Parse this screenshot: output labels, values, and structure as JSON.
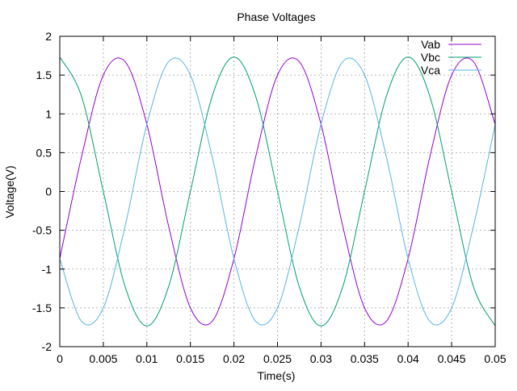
{
  "chart_data": {
    "type": "line",
    "title": "Phase Voltages",
    "xlabel": "Time(s)",
    "ylabel": "Voltage(V)",
    "xlim": [
      0,
      0.05
    ],
    "ylim": [
      -2,
      2
    ],
    "x_ticks": [
      "0",
      "0.005",
      "0.01",
      "0.015",
      "0.02",
      "0.025",
      "0.03",
      "0.035",
      "0.04",
      "0.045",
      "0.05"
    ],
    "y_ticks": [
      "2",
      "1.5",
      "1",
      "0.5",
      "0",
      "-0.5",
      "-1",
      "-1.5",
      "-2"
    ],
    "grid": true,
    "legend_position": "top-right",
    "series": [
      {
        "name": "Vab",
        "color": "#9400d3",
        "x": [
          0,
          0.0025,
          0.005,
          0.0075,
          0.01,
          0.0125,
          0.015,
          0.0175,
          0.02,
          0.0225,
          0.025,
          0.0275,
          0.03,
          0.0325,
          0.035,
          0.0375,
          0.04,
          0.0425,
          0.045,
          0.0475,
          0.05
        ],
        "values": [
          -0.866,
          0.448,
          1.5,
          1.673,
          0.866,
          -0.448,
          -1.5,
          -1.673,
          -0.866,
          0.448,
          1.5,
          1.673,
          0.866,
          -0.448,
          -1.5,
          -1.673,
          -0.866,
          0.448,
          1.5,
          1.673,
          0.866
        ]
      },
      {
        "name": "Vbc",
        "color": "#009e73",
        "x": [
          0,
          0.0025,
          0.005,
          0.0075,
          0.01,
          0.0125,
          0.015,
          0.0175,
          0.02,
          0.0225,
          0.025,
          0.0275,
          0.03,
          0.0325,
          0.035,
          0.0375,
          0.04,
          0.0425,
          0.045,
          0.0475,
          0.05
        ],
        "values": [
          1.732,
          1.225,
          0,
          -1.225,
          -1.732,
          -1.225,
          0,
          1.225,
          1.732,
          1.225,
          0,
          -1.225,
          -1.732,
          -1.225,
          0,
          1.225,
          1.732,
          1.225,
          0,
          -1.225,
          -1.732
        ]
      },
      {
        "name": "Vca",
        "color": "#56b4e9",
        "x": [
          0,
          0.0025,
          0.005,
          0.0075,
          0.01,
          0.0125,
          0.015,
          0.0175,
          0.02,
          0.0225,
          0.025,
          0.0275,
          0.03,
          0.0325,
          0.035,
          0.0375,
          0.04,
          0.0425,
          0.045,
          0.0475,
          0.05
        ],
        "values": [
          -0.866,
          -1.673,
          -1.5,
          -0.448,
          0.866,
          1.673,
          1.5,
          0.448,
          -0.866,
          -1.673,
          -1.5,
          -0.448,
          0.866,
          1.673,
          1.5,
          0.448,
          -0.866,
          -1.673,
          -1.5,
          -0.448,
          0.866
        ]
      }
    ]
  }
}
